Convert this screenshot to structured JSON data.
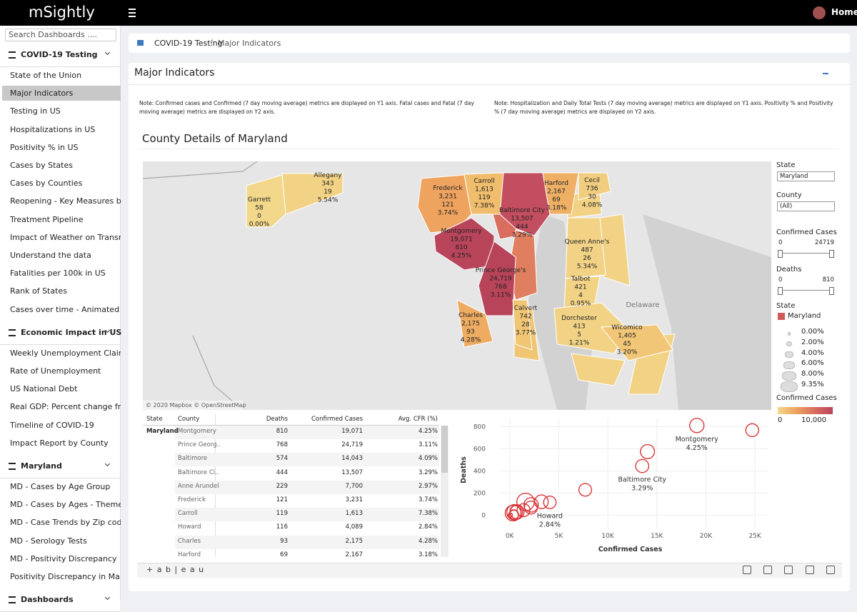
{
  "header": {
    "brand": "mSightly",
    "user": "Home"
  },
  "sidebar": {
    "search_placeholder": "Search Dashboards ....",
    "groups": [
      {
        "title": "COVID-19 Testing",
        "items": [
          "State of the Union",
          "Major Indicators",
          "Testing in US",
          "Hospitalizations in US",
          "Positivity % in US",
          "Cases by States",
          "Cases by Counties",
          "Reopening - Key Measures by ..",
          "Treatment Pipeline",
          "Impact of Weather on Transmi..",
          "Understand the data",
          "Fatalities per 100k in US",
          "Rank of States",
          "Cases over time - Animated M.."
        ]
      },
      {
        "title": "Economic Impact in US",
        "items": [
          "Weekly Unemployment Claims",
          "Rate of Unemployment",
          "US National Debt",
          "Real GDP: Percent change fro..",
          "Timeline of COVID-19",
          "Impact Report by County"
        ]
      },
      {
        "title": "Maryland",
        "items": [
          "MD - Cases by Age Group",
          "MD - Cases by Ages - Theme R..",
          "MD - Case Trends by Zip code..",
          "MD - Serology Tests",
          "MD - Positivity Discrepancy",
          "Positivity Discrepancy in Ma.."
        ]
      },
      {
        "title": "Dashboards",
        "items": []
      }
    ]
  },
  "breadcrumb": [
    "COVID-19 Testing",
    "Major Indicators"
  ],
  "panel": {
    "title": "Major Indicators",
    "note_left": "Note: Confirmed cases and Confirmed (7 day moving average) metrics are displayed on Y1 axis. Fatal cases and Fatal (7 day moving average) metrics are displayed on Y2 axis.",
    "note_right": "Note: Hospitalization and Daily Total Tests (7 day moving average) metrics are displayed on Y1 axis. Positivity % and Positivity % (7 day moving average) metrics are displayed on Y2 axis.",
    "dashboard_title": "County Details of Maryland"
  },
  "map": {
    "attribution": "© 2020 Mapbox © OpenStreetMap",
    "place": "Delaware",
    "counties": [
      {
        "name": "Allegany",
        "cases": "343",
        "deaths": "19",
        "cfr": "5.54%",
        "color": "#f2d386"
      },
      {
        "name": "Garrett",
        "cases": "58",
        "deaths": "0",
        "cfr": "0.00%",
        "color": "#f3d88c"
      },
      {
        "name": "Frederick",
        "cases": "3,231",
        "deaths": "121",
        "cfr": "3.74%",
        "color": "#eea35f"
      },
      {
        "name": "Carroll",
        "cases": "1,613",
        "deaths": "119",
        "cfr": "7.38%",
        "color": "#f0bd6c"
      },
      {
        "name": "Baltimore City",
        "cases": "13,507",
        "deaths": "444",
        "cfr": "3.29%",
        "color": "#c24e5f"
      },
      {
        "name": "Harford",
        "cases": "2,167",
        "deaths": "69",
        "cfr": "3.18%",
        "color": "#efb066"
      },
      {
        "name": "Cecil",
        "cases": "736",
        "deaths": "30",
        "cfr": "4.08%",
        "color": "#f1cd7f"
      },
      {
        "name": "Montgomery",
        "cases": "19,071",
        "deaths": "810",
        "cfr": "4.25%",
        "color": "#b9455b"
      },
      {
        "name": "Queen Anne's",
        "cases": "487",
        "deaths": "26",
        "cfr": "5.34%",
        "color": "#f2d386"
      },
      {
        "name": "Prince George's",
        "cases": "24,719",
        "deaths": "768",
        "cfr": "3.11%",
        "color": "#b84459"
      },
      {
        "name": "Talbot",
        "cases": "421",
        "deaths": "4",
        "cfr": "0.95%",
        "color": "#f2d386"
      },
      {
        "name": "Calvert",
        "cases": "742",
        "deaths": "28",
        "cfr": "3.77%",
        "color": "#f0c574"
      },
      {
        "name": "Charles",
        "cases": "2,175",
        "deaths": "93",
        "cfr": "4.28%",
        "color": "#eeab62"
      },
      {
        "name": "Dorchester",
        "cases": "413",
        "deaths": "5",
        "cfr": "1.21%",
        "color": "#f2d386"
      },
      {
        "name": "Wicomico",
        "cases": "1,405",
        "deaths": "45",
        "cfr": "3.20%",
        "color": "#f1c677"
      }
    ]
  },
  "filters": {
    "state_label": "State",
    "state_value": "Maryland",
    "county_label": "County",
    "county_value": "(All)",
    "cases_label": "Confirmed Cases",
    "cases_min": "0",
    "cases_max": "24719",
    "deaths_label": "Deaths",
    "deaths_min": "0",
    "deaths_max": "810",
    "legend_state_title": "State",
    "legend_state": "Maryland",
    "legend_state_color": "#d05a5a",
    "size_legend": [
      "0.00%",
      "2.00%",
      "4.00%",
      "6.00%",
      "8.00%",
      "9.35%"
    ],
    "color_legend_title": "Confirmed Cases",
    "color_legend_min": "0",
    "color_legend_max": "10,000"
  },
  "table": {
    "headers": [
      "State",
      "County",
      "Deaths",
      "Confirmed Cases",
      "Avg. CFR (%)"
    ],
    "rows": [
      [
        "Maryland",
        "Montgomery",
        "810",
        "19,071",
        "4.25%"
      ],
      [
        "",
        "Prince Georg..",
        "768",
        "24,719",
        "3.11%"
      ],
      [
        "",
        "Baltimore",
        "574",
        "14,043",
        "4.09%"
      ],
      [
        "",
        "Baltimore Ci..",
        "444",
        "13,507",
        "3.29%"
      ],
      [
        "",
        "Anne Arundel",
        "229",
        "7,700",
        "2.97%"
      ],
      [
        "",
        "Frederick",
        "121",
        "3,231",
        "3.74%"
      ],
      [
        "",
        "Carroll",
        "119",
        "1,613",
        "7.38%"
      ],
      [
        "",
        "Howard",
        "116",
        "4,089",
        "2.84%"
      ],
      [
        "",
        "Charles",
        "93",
        "2,175",
        "4.28%"
      ],
      [
        "",
        "Harford",
        "69",
        "2,167",
        "3.18%"
      ]
    ]
  },
  "chart_data": {
    "type": "scatter",
    "x_label": "Confirmed Cases",
    "y_label": "Deaths",
    "color": "#d9383a",
    "x": [
      19071,
      24719,
      14043,
      13507,
      7700,
      3231,
      1613,
      4089,
      2175,
      2167,
      343,
      58,
      736,
      487,
      421,
      742,
      413,
      1405
    ],
    "y": [
      810,
      768,
      574,
      444,
      229,
      121,
      119,
      116,
      93,
      69,
      19,
      0,
      30,
      26,
      4,
      28,
      5,
      45
    ],
    "sizes": [
      4.25,
      3.11,
      4.09,
      3.29,
      2.97,
      3.74,
      7.38,
      2.84,
      4.28,
      3.18,
      5.54,
      0,
      4.08,
      5.34,
      0.95,
      3.77,
      1.21,
      3.2
    ],
    "xlim": [
      -1000,
      26300
    ],
    "ylim": [
      -120,
      880
    ],
    "xticks": [
      {
        "value": 0,
        "label": "0K"
      },
      {
        "value": 5000,
        "label": "5K"
      },
      {
        "value": 10000,
        "label": "10K"
      },
      {
        "value": 15000,
        "label": "15K"
      },
      {
        "value": 20000,
        "label": "20K"
      },
      {
        "value": 25000,
        "label": "25K"
      }
    ],
    "yticks": [
      0,
      200,
      400,
      600,
      800
    ],
    "annotations": [
      {
        "text": "Montgomery",
        "detail": "4.25%",
        "x": 19071,
        "y": 810
      },
      {
        "text": "Baltimore City",
        "detail": "3.29%",
        "x": 13507,
        "y": 444
      },
      {
        "text": "Howard",
        "detail": "2.84%",
        "x": 4089,
        "y": 116
      }
    ]
  },
  "toolbar": {
    "brand": "+ a b | e a u"
  }
}
